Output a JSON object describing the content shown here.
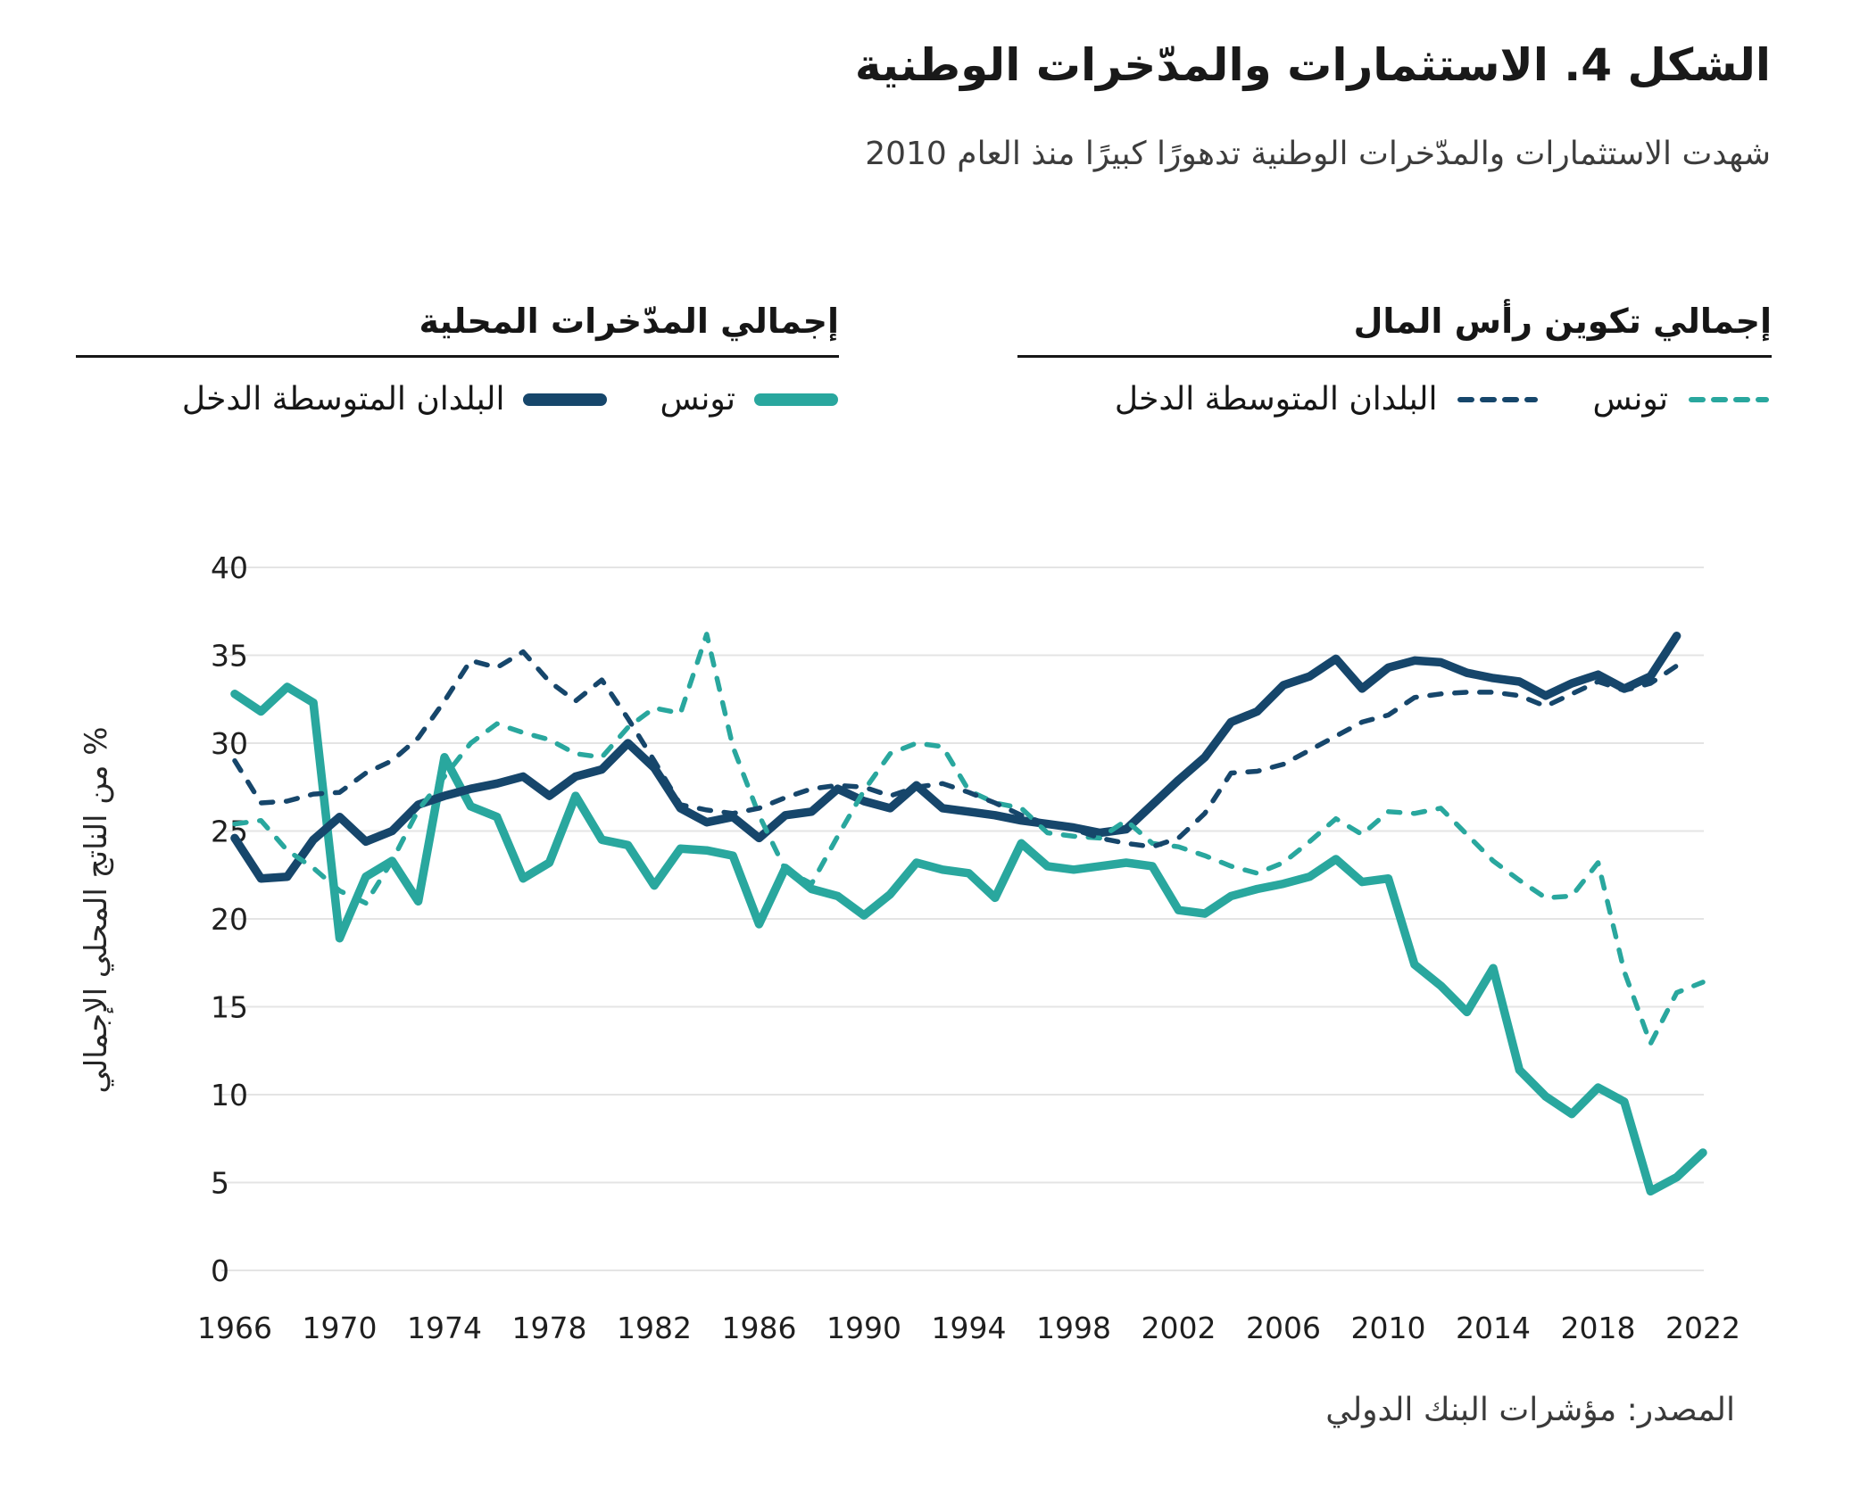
{
  "header": {
    "title": "الشكل 4. الاستثمارات والمدّخرات الوطنية",
    "subtitle": "شهدت الاستثمارات والمدّخرات الوطنية تدهورًا كبيرًا منذ العام 2010"
  },
  "legend": {
    "capital_formation": {
      "title": "إجمالي تكوين رأس المال",
      "entries": [
        {
          "label": "تونس",
          "color": "teal",
          "style": "dashed"
        },
        {
          "label": "البلدان المتوسطة الدخل",
          "color": "navy",
          "style": "dashed"
        }
      ]
    },
    "savings": {
      "title": "إجمالي المدّخرات المحلية",
      "entries": [
        {
          "label": "تونس",
          "color": "teal",
          "style": "solid"
        },
        {
          "label": "البلدان المتوسطة الدخل",
          "color": "navy",
          "style": "solid"
        }
      ]
    }
  },
  "colors": {
    "navy": "#16466b",
    "teal": "#29a79e",
    "grid": "#e4e4e4",
    "tick_text": "#1f1f1f"
  },
  "source": "المصدر: مؤشرات البنك الدولي",
  "chart_data": {
    "type": "line",
    "title": "الشكل 4. الاستثمارات والمدّخرات الوطنية",
    "xlabel": "",
    "ylabel": "% من الناتج المحلي الإجمالي",
    "ylim": [
      0,
      40
    ],
    "y_ticks": [
      0,
      5,
      10,
      15,
      20,
      25,
      30,
      35,
      40
    ],
    "x_ticks": [
      1966,
      1970,
      1974,
      1978,
      1982,
      1986,
      1990,
      1994,
      1998,
      2002,
      2006,
      2010,
      2014,
      2018,
      2022
    ],
    "x_range": [
      1966,
      2022
    ],
    "grid": true,
    "legend_position": "top",
    "series": [
      {
        "id": "tunisia-savings",
        "name": "تونس — إجمالي المدّخرات المحلية",
        "color": "teal",
        "dashed": false,
        "start_year": 1966,
        "values": [
          32.8,
          31.8,
          33.2,
          32.3,
          18.9,
          22.4,
          23.3,
          21.0,
          29.2,
          26.4,
          25.8,
          22.3,
          23.2,
          27.0,
          24.5,
          24.2,
          21.9,
          24.0,
          23.9,
          23.6,
          19.7,
          22.9,
          21.7,
          21.3,
          20.2,
          21.4,
          23.2,
          22.8,
          22.6,
          21.2,
          24.3,
          23.0,
          22.8,
          23.0,
          23.2,
          23.0,
          20.5,
          20.3,
          21.3,
          21.7,
          22.0,
          22.4,
          23.4,
          22.1,
          22.3,
          17.4,
          16.2,
          14.7,
          17.2,
          11.4,
          9.9,
          8.9,
          10.4,
          9.6,
          4.5,
          5.3,
          6.7
        ]
      },
      {
        "id": "mic-savings",
        "name": "البلدان المتوسطة الدخل — إجمالي المدّخرات المحلية",
        "color": "navy",
        "dashed": false,
        "start_year": 1966,
        "values": [
          24.6,
          22.3,
          22.4,
          24.5,
          25.8,
          24.4,
          25.0,
          26.5,
          27.0,
          27.4,
          27.7,
          28.1,
          27.0,
          28.1,
          28.5,
          30.0,
          28.6,
          26.3,
          25.5,
          25.8,
          24.6,
          25.9,
          26.1,
          27.4,
          26.7,
          26.3,
          27.6,
          26.3,
          26.1,
          25.9,
          25.6,
          25.4,
          25.2,
          24.9,
          25.1,
          26.5,
          27.9,
          29.2,
          31.2,
          31.8,
          33.3,
          33.8,
          34.8,
          33.1,
          34.3,
          34.7,
          34.6,
          34.0,
          33.7,
          33.5,
          32.7,
          33.4,
          33.9,
          33.1,
          33.8,
          36.1
        ]
      },
      {
        "id": "tunisia-capital-formation",
        "name": "تونس — إجمالي تكوين رأس المال",
        "color": "teal",
        "dashed": true,
        "start_year": 1966,
        "values": [
          25.4,
          25.6,
          23.9,
          22.9,
          21.6,
          20.9,
          23.3,
          26.2,
          28.1,
          30.0,
          31.1,
          30.6,
          30.2,
          29.4,
          29.2,
          30.9,
          32.0,
          31.7,
          36.2,
          29.8,
          25.9,
          22.8,
          22.0,
          24.7,
          27.3,
          29.4,
          30.0,
          29.8,
          27.3,
          26.6,
          26.3,
          24.9,
          24.7,
          24.6,
          25.6,
          24.3,
          24.1,
          23.6,
          23.0,
          22.6,
          23.2,
          24.4,
          25.7,
          24.8,
          26.1,
          26.0,
          26.3,
          24.8,
          23.3,
          22.2,
          21.2,
          21.3,
          23.2,
          17.0,
          12.9,
          15.8,
          16.4
        ]
      },
      {
        "id": "mic-capital-formation",
        "name": "البلدان المتوسطة الدخل — إجمالي تكوين رأس المال",
        "color": "navy",
        "dashed": true,
        "start_year": 1966,
        "values": [
          29.0,
          26.6,
          26.7,
          27.1,
          27.2,
          28.3,
          29.0,
          30.3,
          32.4,
          34.7,
          34.3,
          35.2,
          33.5,
          32.4,
          33.6,
          31.4,
          29.0,
          26.5,
          26.2,
          26.0,
          26.3,
          26.9,
          27.4,
          27.6,
          27.5,
          27.0,
          27.5,
          27.7,
          27.2,
          26.6,
          25.9,
          25.4,
          25.1,
          24.6,
          24.3,
          24.1,
          24.6,
          26.0,
          28.3,
          28.4,
          28.8,
          29.6,
          30.4,
          31.2,
          31.6,
          32.6,
          32.8,
          32.9,
          32.9,
          32.7,
          32.1,
          32.8,
          33.5,
          33.0,
          33.4,
          34.4
        ]
      }
    ]
  }
}
